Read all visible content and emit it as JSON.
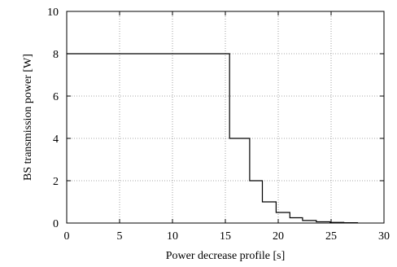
{
  "chart_data": {
    "type": "line",
    "title": "",
    "xlabel": "Power decrease profile  [s]",
    "ylabel": "BS transmission power  [W]",
    "xlim": [
      0,
      30
    ],
    "ylim": [
      0,
      10
    ],
    "xticks": [
      0,
      5,
      10,
      15,
      20,
      25,
      30
    ],
    "yticks": [
      0,
      2,
      4,
      6,
      8,
      10
    ],
    "grid": true,
    "line_shape": "step",
    "series": [
      {
        "points": [
          [
            0,
            8
          ],
          [
            15.4,
            8
          ],
          [
            15.4,
            4
          ],
          [
            17.3,
            4
          ],
          [
            17.3,
            2
          ],
          [
            18.5,
            2
          ],
          [
            18.5,
            1
          ],
          [
            19.8,
            1
          ],
          [
            19.8,
            0.5
          ],
          [
            21.1,
            0.5
          ],
          [
            21.1,
            0.25
          ],
          [
            22.3,
            0.25
          ],
          [
            22.3,
            0.12
          ],
          [
            23.6,
            0.12
          ],
          [
            23.6,
            0.06
          ],
          [
            24.9,
            0.06
          ],
          [
            24.9,
            0.03
          ],
          [
            26.2,
            0.03
          ],
          [
            26.2,
            0.015
          ],
          [
            27.5,
            0.015
          ],
          [
            27.5,
            0
          ]
        ]
      }
    ]
  }
}
